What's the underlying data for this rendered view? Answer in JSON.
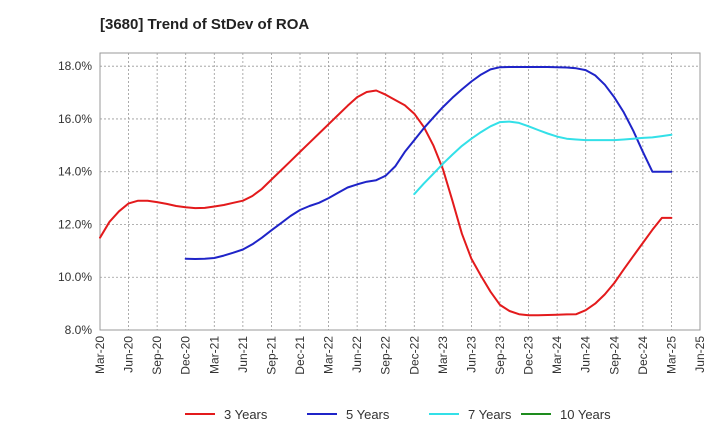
{
  "chart_data": {
    "type": "line",
    "title": "[3680]  Trend of StDev of ROA",
    "xlabel": "",
    "ylabel": "",
    "x_ticks": [
      "Mar-20",
      "Jun-20",
      "Sep-20",
      "Dec-20",
      "Mar-21",
      "Jun-21",
      "Sep-21",
      "Dec-21",
      "Mar-22",
      "Jun-22",
      "Sep-22",
      "Dec-22",
      "Mar-23",
      "Jun-23",
      "Sep-23",
      "Dec-23",
      "Mar-24",
      "Jun-24",
      "Sep-24",
      "Dec-24",
      "Mar-25",
      "Jun-25"
    ],
    "y_ticks": [
      "8.0%",
      "10.0%",
      "12.0%",
      "14.0%",
      "16.0%",
      "18.0%"
    ],
    "y_tick_values": [
      8,
      10,
      12,
      14,
      16,
      18
    ],
    "ylim": [
      8,
      18.5
    ],
    "grid": true,
    "legend_position": "bottom",
    "series": [
      {
        "name": "3 Years",
        "color": "#e31a1c",
        "x": [
          "Mar-20",
          "Apr-20",
          "May-20",
          "Jun-20",
          "Jul-20",
          "Aug-20",
          "Sep-20",
          "Oct-20",
          "Nov-20",
          "Dec-20",
          "Jan-21",
          "Feb-21",
          "Mar-21",
          "Apr-21",
          "May-21",
          "Jun-21",
          "Jul-21",
          "Aug-21",
          "Sep-21",
          "Oct-21",
          "Nov-21",
          "Dec-21",
          "Jan-22",
          "Feb-22",
          "Mar-22",
          "Apr-22",
          "May-22",
          "Jun-22",
          "Jul-22",
          "Aug-22",
          "Sep-22",
          "Oct-22",
          "Nov-22",
          "Dec-22",
          "Jan-23",
          "Feb-23",
          "Mar-23",
          "Apr-23",
          "May-23",
          "Jun-23",
          "Jul-23",
          "Aug-23",
          "Sep-23",
          "Oct-23",
          "Nov-23",
          "Dec-23",
          "Jan-24",
          "Feb-24",
          "Mar-24",
          "Apr-24",
          "May-24",
          "Jun-24",
          "Jul-24",
          "Aug-24",
          "Sep-24",
          "Oct-24",
          "Nov-24",
          "Dec-24",
          "Jan-25",
          "Feb-25",
          "Mar-25"
        ],
        "values": [
          11.5,
          12.1,
          12.5,
          12.8,
          12.9,
          12.9,
          12.85,
          12.78,
          12.7,
          12.65,
          12.62,
          12.63,
          12.68,
          12.74,
          12.82,
          12.9,
          13.08,
          13.35,
          13.7,
          14.05,
          14.4,
          14.75,
          15.1,
          15.45,
          15.8,
          16.15,
          16.5,
          16.82,
          17.02,
          17.08,
          16.92,
          16.72,
          16.52,
          16.2,
          15.7,
          15.0,
          14.1,
          12.9,
          11.65,
          10.7,
          10.05,
          9.45,
          8.95,
          8.72,
          8.6,
          8.56,
          8.56,
          8.57,
          8.58,
          8.59,
          8.6,
          8.75,
          9.0,
          9.35,
          9.78,
          10.3,
          10.8,
          11.3,
          11.8,
          12.25,
          12.25
        ]
      },
      {
        "name": "5 Years",
        "color": "#1f24c8",
        "x": [
          "Dec-20",
          "Jan-21",
          "Feb-21",
          "Mar-21",
          "Apr-21",
          "May-21",
          "Jun-21",
          "Jul-21",
          "Aug-21",
          "Sep-21",
          "Oct-21",
          "Nov-21",
          "Dec-21",
          "Jan-22",
          "Feb-22",
          "Mar-22",
          "Apr-22",
          "May-22",
          "Jun-22",
          "Jul-22",
          "Aug-22",
          "Sep-22",
          "Oct-22",
          "Nov-22",
          "Dec-22",
          "Jan-23",
          "Feb-23",
          "Mar-23",
          "Apr-23",
          "May-23",
          "Jun-23",
          "Jul-23",
          "Aug-23",
          "Sep-23",
          "Oct-23",
          "Nov-23",
          "Dec-23",
          "Jan-24",
          "Feb-24",
          "Mar-24",
          "Apr-24",
          "May-24",
          "Jun-24",
          "Jul-24",
          "Aug-24",
          "Sep-24",
          "Oct-24",
          "Nov-24",
          "Dec-24",
          "Jan-25",
          "Feb-25",
          "Mar-25"
        ],
        "values": [
          10.7,
          10.69,
          10.7,
          10.73,
          10.82,
          10.93,
          11.05,
          11.25,
          11.5,
          11.78,
          12.05,
          12.32,
          12.55,
          12.7,
          12.82,
          13.0,
          13.2,
          13.4,
          13.52,
          13.62,
          13.68,
          13.85,
          14.2,
          14.75,
          15.2,
          15.65,
          16.05,
          16.45,
          16.8,
          17.12,
          17.42,
          17.68,
          17.88,
          17.96,
          17.97,
          17.97,
          17.97,
          17.97,
          17.97,
          17.96,
          17.95,
          17.92,
          17.85,
          17.65,
          17.3,
          16.82,
          16.25,
          15.55,
          14.75,
          14.0,
          14.0,
          14.0
        ]
      },
      {
        "name": "7 Years",
        "color": "#33e0e8",
        "x": [
          "Dec-22",
          "Jan-23",
          "Feb-23",
          "Mar-23",
          "Apr-23",
          "May-23",
          "Jun-23",
          "Jul-23",
          "Aug-23",
          "Sep-23",
          "Oct-23",
          "Nov-23",
          "Dec-23",
          "Jan-24",
          "Feb-24",
          "Mar-24",
          "Apr-24",
          "May-24",
          "Jun-24",
          "Jul-24",
          "Aug-24",
          "Sep-24",
          "Oct-24",
          "Nov-24",
          "Dec-24",
          "Jan-25",
          "Feb-25",
          "Mar-25"
        ],
        "values": [
          13.15,
          13.55,
          13.92,
          14.3,
          14.65,
          14.98,
          15.25,
          15.5,
          15.72,
          15.88,
          15.9,
          15.85,
          15.72,
          15.58,
          15.45,
          15.33,
          15.25,
          15.22,
          15.2,
          15.2,
          15.2,
          15.2,
          15.22,
          15.25,
          15.28,
          15.3,
          15.35,
          15.4
        ]
      },
      {
        "name": "10 Years",
        "color": "#1e8c1e",
        "x": [],
        "values": []
      }
    ]
  }
}
